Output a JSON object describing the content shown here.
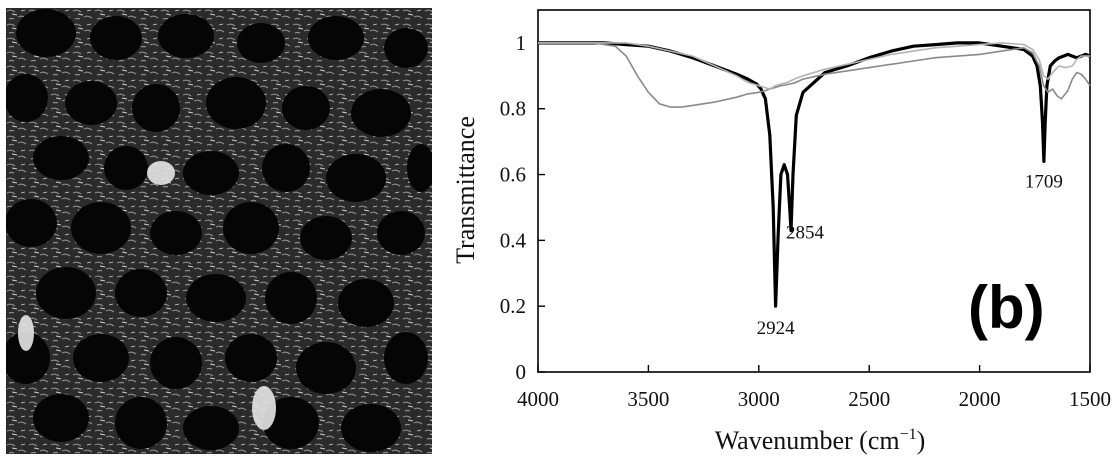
{
  "left_panel": {
    "image": "afm-surface-micrograph-dark-pores"
  },
  "chart_data": {
    "type": "line",
    "panel_label": "(b)",
    "xlabel": "Wavenumber (cm",
    "xlabel_sup": "−1",
    "xlabel_close": ")",
    "ylabel": "Transmittance",
    "xlim": [
      4000,
      1500
    ],
    "ylim": [
      0,
      1.1
    ],
    "x_reversed": true,
    "x_ticks": [
      4000,
      3500,
      3000,
      2500,
      2000,
      1500
    ],
    "y_ticks": [
      0,
      0.2,
      0.4,
      0.6,
      0.8,
      1
    ],
    "y_tick_labels": [
      "0",
      "0.2",
      "0.4",
      "0.6",
      "0.8",
      "1"
    ],
    "grid": false,
    "annotations": [
      {
        "text": "2924",
        "x": 2924,
        "y": 0.2
      },
      {
        "text": "2854",
        "x": 2854,
        "y": 0.43
      },
      {
        "text": "1709",
        "x": 1709,
        "y": 0.64
      }
    ],
    "series": [
      {
        "color": "#000000",
        "x": [
          4000,
          3800,
          3700,
          3600,
          3500,
          3400,
          3300,
          3200,
          3100,
          3050,
          3010,
          2990,
          2970,
          2950,
          2935,
          2924,
          2912,
          2900,
          2885,
          2870,
          2860,
          2854,
          2845,
          2830,
          2800,
          2750,
          2700,
          2600,
          2500,
          2400,
          2300,
          2200,
          2100,
          2000,
          1950,
          1900,
          1850,
          1800,
          1760,
          1740,
          1725,
          1715,
          1709,
          1703,
          1695,
          1680,
          1660,
          1640,
          1620,
          1600,
          1580,
          1560,
          1540,
          1520,
          1500
        ],
        "y": [
          1.0,
          1.0,
          1.0,
          0.995,
          0.99,
          0.975,
          0.955,
          0.93,
          0.905,
          0.89,
          0.875,
          0.86,
          0.83,
          0.72,
          0.5,
          0.2,
          0.42,
          0.6,
          0.63,
          0.6,
          0.5,
          0.43,
          0.6,
          0.78,
          0.85,
          0.88,
          0.91,
          0.93,
          0.955,
          0.975,
          0.99,
          0.995,
          1.0,
          1.0,
          0.995,
          0.99,
          0.985,
          0.98,
          0.96,
          0.93,
          0.87,
          0.76,
          0.64,
          0.76,
          0.87,
          0.93,
          0.945,
          0.955,
          0.96,
          0.965,
          0.96,
          0.955,
          0.96,
          0.965,
          0.96
        ]
      },
      {
        "color": "#8a8a8a",
        "x": [
          4000,
          3800,
          3750,
          3700,
          3650,
          3600,
          3550,
          3500,
          3450,
          3400,
          3350,
          3300,
          3200,
          3100,
          3050,
          3000,
          2970,
          2950,
          2924,
          2900,
          2880,
          2860,
          2840,
          2800,
          2700,
          2600,
          2500,
          2400,
          2300,
          2200,
          2100,
          2000,
          1900,
          1800,
          1760,
          1730,
          1710,
          1690,
          1670,
          1650,
          1630,
          1600,
          1580,
          1560,
          1540,
          1520,
          1500
        ],
        "y": [
          1.0,
          1.0,
          1.0,
          0.995,
          0.99,
          0.96,
          0.9,
          0.85,
          0.815,
          0.805,
          0.805,
          0.81,
          0.82,
          0.835,
          0.845,
          0.85,
          0.855,
          0.86,
          0.865,
          0.87,
          0.872,
          0.875,
          0.878,
          0.89,
          0.905,
          0.915,
          0.925,
          0.935,
          0.945,
          0.955,
          0.96,
          0.965,
          0.975,
          0.985,
          0.97,
          0.93,
          0.87,
          0.85,
          0.86,
          0.84,
          0.83,
          0.855,
          0.89,
          0.91,
          0.905,
          0.89,
          0.87
        ]
      },
      {
        "color": "#b4b4b4",
        "x": [
          4000,
          3800,
          3700,
          3600,
          3500,
          3400,
          3300,
          3200,
          3100,
          3050,
          3000,
          2950,
          2924,
          2900,
          2870,
          2840,
          2800,
          2700,
          2600,
          2500,
          2400,
          2300,
          2200,
          2100,
          2000,
          1900,
          1800,
          1760,
          1730,
          1710,
          1690,
          1670,
          1640,
          1610,
          1580,
          1560,
          1540,
          1520,
          1500
        ],
        "y": [
          1.0,
          1.0,
          1.0,
          1.0,
          0.99,
          0.975,
          0.96,
          0.93,
          0.9,
          0.88,
          0.87,
          0.86,
          0.87,
          0.875,
          0.88,
          0.89,
          0.9,
          0.92,
          0.935,
          0.95,
          0.965,
          0.975,
          0.985,
          0.99,
          0.995,
          1.0,
          0.995,
          0.98,
          0.95,
          0.9,
          0.89,
          0.91,
          0.93,
          0.925,
          0.93,
          0.95,
          0.96,
          0.96,
          0.96
        ]
      }
    ]
  }
}
